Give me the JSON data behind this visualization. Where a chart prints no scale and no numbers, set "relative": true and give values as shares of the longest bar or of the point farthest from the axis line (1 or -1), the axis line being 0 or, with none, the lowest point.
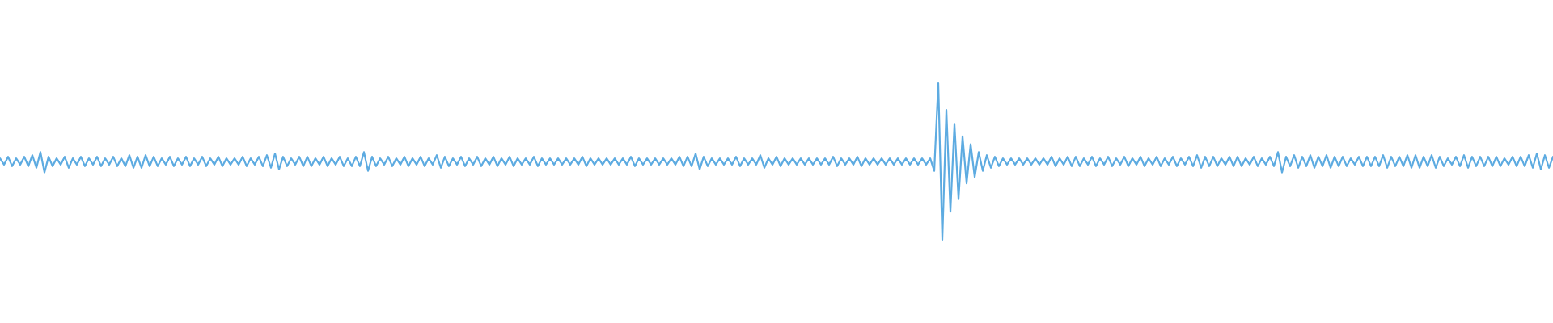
{
  "chart_data": {
    "type": "line",
    "relative": true,
    "color": "#5dabe1",
    "categories": [
      null,
      null,
      null,
      null,
      null,
      null,
      null,
      null,
      null,
      null,
      null,
      null,
      null,
      null,
      null,
      null,
      null,
      null,
      null,
      null,
      null,
      null,
      null,
      null,
      null,
      null,
      null,
      null,
      null,
      null,
      null,
      null,
      null,
      null,
      null,
      null,
      null,
      null,
      null,
      null,
      null,
      null,
      null,
      null,
      null,
      null,
      null,
      null,
      null,
      null,
      null,
      null,
      null,
      null,
      null,
      null,
      null,
      null,
      null,
      null,
      null,
      null,
      null,
      null,
      null,
      null,
      null,
      null,
      null,
      null,
      null,
      null,
      null,
      null,
      null,
      null,
      null,
      null,
      null,
      null,
      null,
      null,
      null,
      null,
      null,
      null,
      null,
      null,
      null,
      null,
      null,
      null,
      null,
      null,
      null,
      null,
      null,
      null,
      null,
      null,
      null,
      null,
      null,
      null,
      null,
      null,
      null,
      null,
      null,
      null,
      null,
      null,
      null,
      null,
      null,
      null,
      null,
      null,
      null,
      null,
      null,
      null,
      null,
      null,
      null,
      null,
      null,
      null,
      null,
      null,
      null,
      null,
      null,
      null,
      null,
      null,
      null,
      null,
      null,
      null,
      null,
      null,
      null,
      null,
      null,
      null,
      null,
      null,
      null,
      null,
      null,
      null,
      null,
      null,
      null,
      null,
      null,
      null,
      null,
      null,
      null,
      null,
      null,
      null,
      null,
      null,
      null,
      null,
      null,
      null,
      null,
      null,
      null,
      null,
      null,
      null,
      null,
      null,
      null,
      null,
      null,
      null,
      null,
      null,
      null,
      null,
      null,
      null,
      null,
      null,
      null,
      null,
      null,
      null,
      null,
      null,
      null,
      null,
      null,
      null,
      null,
      null,
      null,
      null,
      null,
      null,
      null,
      null,
      null,
      null,
      null,
      null,
      null,
      null,
      null,
      null,
      null,
      null,
      null,
      null,
      null,
      null,
      null,
      null,
      null,
      null,
      null,
      null,
      null,
      null,
      null,
      null,
      null,
      null,
      null,
      null,
      null,
      null,
      null,
      null,
      null,
      null,
      null,
      null,
      null,
      null,
      null,
      null,
      null,
      null,
      null,
      null,
      null,
      null,
      null,
      null,
      null,
      null,
      null,
      null,
      null,
      null,
      null,
      null,
      null,
      null,
      null,
      null,
      null,
      null,
      null,
      null,
      null,
      null,
      null,
      null,
      null,
      null,
      null,
      null,
      null,
      null,
      null,
      null,
      null,
      null,
      null,
      null,
      null,
      null,
      null,
      null,
      null,
      null,
      null,
      null,
      null,
      null,
      null,
      null,
      null,
      null,
      null,
      null,
      null,
      null,
      null,
      null,
      null,
      null,
      null,
      null,
      null,
      null,
      null,
      null,
      null,
      null,
      null,
      null,
      null,
      null,
      null,
      null,
      null,
      null,
      null,
      null,
      null,
      null,
      null,
      null,
      null,
      null,
      null,
      null,
      null,
      null,
      null,
      null,
      null,
      null,
      null,
      null,
      null,
      null,
      null,
      null,
      null,
      null,
      null,
      null,
      null,
      null,
      null,
      null,
      null,
      null,
      null,
      null,
      null,
      null,
      null,
      null,
      null,
      null,
      null,
      null,
      null,
      null,
      null,
      null,
      null,
      null,
      null,
      null,
      null,
      null,
      null,
      null,
      null,
      null,
      null,
      null,
      null
    ],
    "values": [
      0.52,
      0.48,
      0.53,
      0.47,
      0.52,
      0.48,
      0.53,
      0.47,
      0.54,
      0.46,
      0.56,
      0.43,
      0.53,
      0.47,
      0.52,
      0.48,
      0.53,
      0.46,
      0.52,
      0.48,
      0.53,
      0.47,
      0.52,
      0.48,
      0.53,
      0.47,
      0.52,
      0.48,
      0.53,
      0.47,
      0.52,
      0.47,
      0.54,
      0.46,
      0.53,
      0.46,
      0.54,
      0.47,
      0.53,
      0.47,
      0.52,
      0.48,
      0.53,
      0.47,
      0.52,
      0.48,
      0.53,
      0.47,
      0.52,
      0.48,
      0.53,
      0.47,
      0.52,
      0.48,
      0.53,
      0.47,
      0.52,
      0.48,
      0.52,
      0.48,
      0.53,
      0.47,
      0.52,
      0.48,
      0.53,
      0.47,
      0.54,
      0.46,
      0.55,
      0.45,
      0.53,
      0.47,
      0.52,
      0.48,
      0.53,
      0.47,
      0.53,
      0.47,
      0.52,
      0.48,
      0.53,
      0.47,
      0.52,
      0.48,
      0.53,
      0.47,
      0.52,
      0.47,
      0.53,
      0.47,
      0.56,
      0.44,
      0.53,
      0.47,
      0.52,
      0.48,
      0.53,
      0.47,
      0.52,
      0.48,
      0.53,
      0.47,
      0.52,
      0.48,
      0.53,
      0.47,
      0.52,
      0.48,
      0.54,
      0.46,
      0.53,
      0.47,
      0.52,
      0.48,
      0.53,
      0.47,
      0.52,
      0.48,
      0.53,
      0.47,
      0.52,
      0.48,
      0.53,
      0.47,
      0.52,
      0.48,
      0.53,
      0.47,
      0.52,
      0.48,
      0.52,
      0.48,
      0.53,
      0.47,
      0.52,
      0.48,
      0.52,
      0.48,
      0.52,
      0.48,
      0.52,
      0.48,
      0.52,
      0.48,
      0.53,
      0.47,
      0.52,
      0.48,
      0.52,
      0.48,
      0.52,
      0.48,
      0.52,
      0.48,
      0.52,
      0.48,
      0.53,
      0.47,
      0.52,
      0.48,
      0.52,
      0.48,
      0.52,
      0.48,
      0.52,
      0.48,
      0.52,
      0.48,
      0.53,
      0.47,
      0.53,
      0.47,
      0.55,
      0.45,
      0.53,
      0.47,
      0.52,
      0.48,
      0.52,
      0.48,
      0.52,
      0.48,
      0.53,
      0.47,
      0.52,
      0.48,
      0.52,
      0.48,
      0.54,
      0.46,
      0.52,
      0.48,
      0.53,
      0.47,
      0.52,
      0.48,
      0.52,
      0.48,
      0.52,
      0.48,
      0.52,
      0.48,
      0.52,
      0.48,
      0.52,
      0.48,
      0.53,
      0.47,
      0.52,
      0.48,
      0.52,
      0.48,
      0.53,
      0.47,
      0.52,
      0.48,
      0.52,
      0.48,
      0.52,
      0.48,
      0.52,
      0.48,
      0.52,
      0.48,
      0.52,
      0.48,
      0.52,
      0.48,
      0.52,
      0.48,
      0.52,
      0.44,
      1,
      0,
      0.83,
      0.18,
      0.74,
      0.26,
      0.66,
      0.36,
      0.61,
      0.4,
      0.56,
      0.44,
      0.54,
      0.46,
      0.53,
      0.47,
      0.52,
      0.48,
      0.52,
      0.48,
      0.52,
      0.48,
      0.52,
      0.48,
      0.52,
      0.48,
      0.52,
      0.48,
      0.53,
      0.47,
      0.52,
      0.48,
      0.53,
      0.47,
      0.53,
      0.47,
      0.52,
      0.48,
      0.53,
      0.47,
      0.52,
      0.48,
      0.53,
      0.47,
      0.52,
      0.48,
      0.53,
      0.47,
      0.52,
      0.48,
      0.53,
      0.47,
      0.52,
      0.48,
      0.53,
      0.47,
      0.52,
      0.48,
      0.53,
      0.47,
      0.52,
      0.48,
      0.53,
      0.47,
      0.54,
      0.46,
      0.53,
      0.47,
      0.53,
      0.47,
      0.52,
      0.48,
      0.53,
      0.47,
      0.53,
      0.47,
      0.52,
      0.48,
      0.53,
      0.47,
      0.52,
      0.48,
      0.53,
      0.47,
      0.56,
      0.43,
      0.53,
      0.47,
      0.54,
      0.46,
      0.53,
      0.47,
      0.54,
      0.46,
      0.53,
      0.47,
      0.54,
      0.46,
      0.53,
      0.47,
      0.53,
      0.47,
      0.52,
      0.48,
      0.53,
      0.47,
      0.53,
      0.47,
      0.53,
      0.47,
      0.54,
      0.46,
      0.53,
      0.47,
      0.53,
      0.47,
      0.54,
      0.46,
      0.54,
      0.46,
      0.53,
      0.47,
      0.54,
      0.46,
      0.53,
      0.47,
      0.52,
      0.48,
      0.53,
      0.47,
      0.54,
      0.46,
      0.53,
      0.47,
      0.53,
      0.47,
      0.53,
      0.47,
      0.53,
      0.47,
      0.52,
      0.48,
      0.53,
      0.47,
      0.53,
      0.47,
      0.54,
      0.46,
      0.55,
      0.45,
      0.54,
      0.46,
      0.53
    ]
  }
}
